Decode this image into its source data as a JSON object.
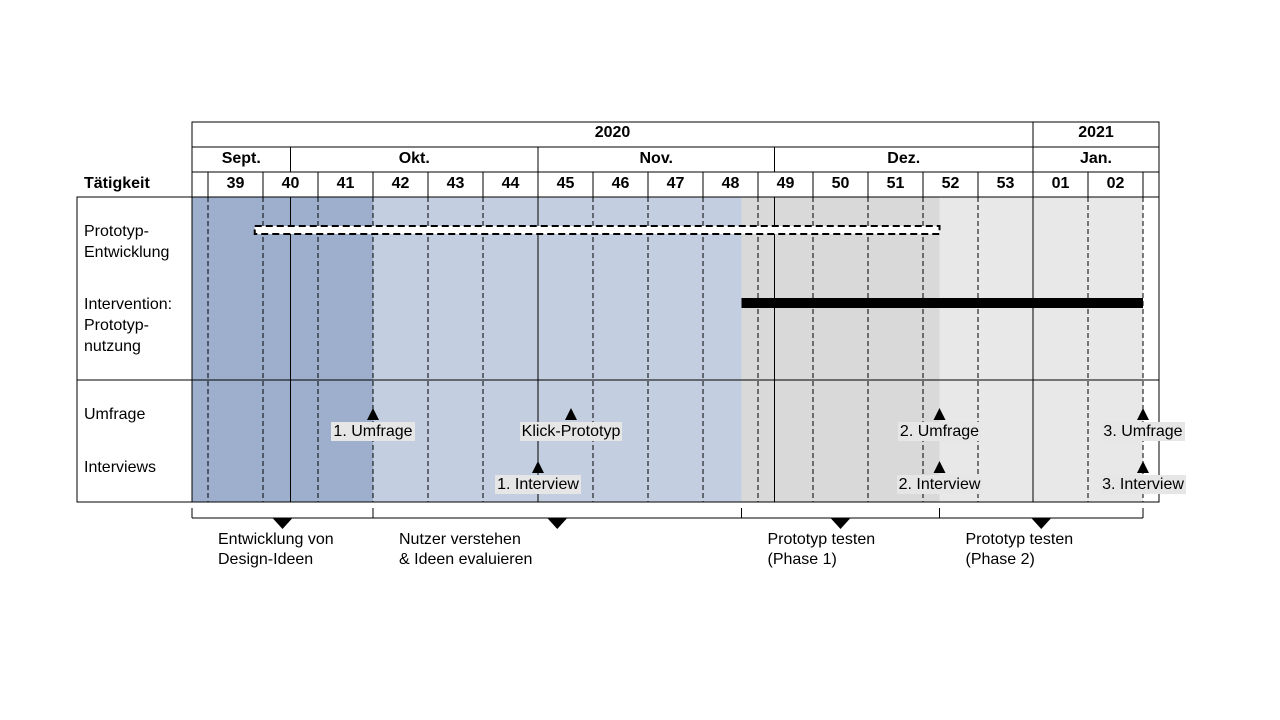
{
  "colors": {
    "phase_dark_blue": "#9dafcc",
    "phase_light_blue": "#c3cee0",
    "phase_gray": "#d9d9d9",
    "phase_light_gray": "#e8e8e8",
    "bar_solid": "#000000",
    "label_bg": "#e6e6e6"
  },
  "header": {
    "years": [
      {
        "label": "2020",
        "from_week_index": 0,
        "to_week_index": 15
      },
      {
        "label": "2021",
        "from_week_index": 15,
        "to_week_index": 17
      }
    ],
    "months": [
      {
        "label": "Sept.",
        "from": 0,
        "to": 1.5
      },
      {
        "label": "Okt.",
        "from": 1.5,
        "to": 6
      },
      {
        "label": "Nov.",
        "from": 6,
        "to": 10.3
      },
      {
        "label": "Dez.",
        "from": 10.3,
        "to": 15
      },
      {
        "label": "Jan.",
        "from": 15,
        "to": 17
      }
    ],
    "activity_label": "Tätigkeit",
    "weeks": [
      "39",
      "40",
      "41",
      "42",
      "43",
      "44",
      "45",
      "46",
      "47",
      "48",
      "49",
      "50",
      "51",
      "52",
      "53",
      "01",
      "02"
    ]
  },
  "rows": {
    "prototype_dev": "Prototyp-\nEntwicklung",
    "intervention": "Intervention:\nPrototyp-\nnutzung",
    "survey": "Umfrage",
    "interviews": "Interviews"
  },
  "phases": [
    {
      "from_week": 0,
      "to_week": 3,
      "color": "phase_dark_blue"
    },
    {
      "from_week": 3,
      "to_week": 9.7,
      "color": "phase_light_blue"
    },
    {
      "from_week": 9.7,
      "to_week": 13.3,
      "color": "phase_gray"
    },
    {
      "from_week": 13.3,
      "to_week": 17,
      "color": "phase_light_gray"
    }
  ],
  "bars": [
    {
      "name": "prototype-development-bar",
      "style": "dashed",
      "from_week": 0.85,
      "to_week": 13.3
    },
    {
      "name": "intervention-bar",
      "style": "solid",
      "from_week": 9.7,
      "to_week": 17
    }
  ],
  "milestones": [
    {
      "name": "survey-1",
      "row": "survey",
      "week_pos": 3.0,
      "label": "1. Umfrage"
    },
    {
      "name": "click-prototype",
      "row": "survey",
      "week_pos": 6.6,
      "label": "Klick-Prototyp"
    },
    {
      "name": "survey-2",
      "row": "survey",
      "week_pos": 13.3,
      "label": "2. Umfrage"
    },
    {
      "name": "survey-3",
      "row": "survey",
      "week_pos": 17.0,
      "label": "3. Umfrage"
    },
    {
      "name": "interview-1",
      "row": "interviews",
      "week_pos": 6.0,
      "label": "1. Interview"
    },
    {
      "name": "interview-2",
      "row": "interviews",
      "week_pos": 13.3,
      "label": "2. Interview"
    },
    {
      "name": "interview-3",
      "row": "interviews",
      "week_pos": 17.0,
      "label": "3. Interview"
    }
  ],
  "phase_labels": [
    {
      "from_week": 0,
      "to_week": 3,
      "label": "Entwicklung von\nDesign-Ideen"
    },
    {
      "from_week": 3,
      "to_week": 9.7,
      "label": "Nutzer verstehen\n& Ideen evaluieren"
    },
    {
      "from_week": 9.7,
      "to_week": 13.3,
      "label": "Prototyp testen\n(Phase 1)"
    },
    {
      "from_week": 13.3,
      "to_week": 17,
      "label": "Prototyp testen\n(Phase 2)"
    }
  ]
}
